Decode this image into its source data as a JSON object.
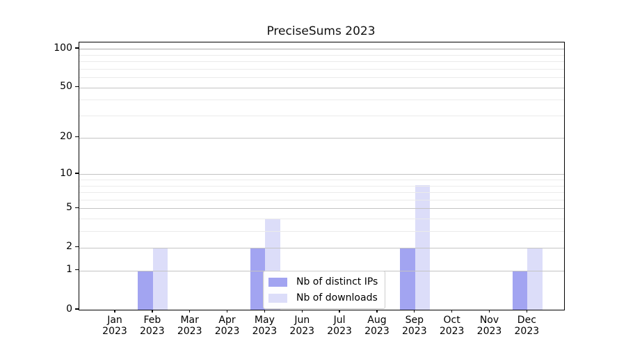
{
  "title": "PreciseSums 2023",
  "legend": {
    "items": [
      {
        "label": "Nb of distinct IPs",
        "color": "#a2a4f1"
      },
      {
        "label": "Nb of downloads",
        "color": "#dcddf9"
      }
    ]
  },
  "chart_data": {
    "type": "bar",
    "title": "PreciseSums 2023",
    "categories": [
      "Jan 2023",
      "Feb 2023",
      "Mar 2023",
      "Apr 2023",
      "May 2023",
      "Jun 2023",
      "Jul 2023",
      "Aug 2023",
      "Sep 2023",
      "Oct 2023",
      "Nov 2023",
      "Dec 2023"
    ],
    "x_months": [
      "Jan",
      "Feb",
      "Mar",
      "Apr",
      "May",
      "Jun",
      "Jul",
      "Aug",
      "Sep",
      "Oct",
      "Nov",
      "Dec"
    ],
    "x_year": "2023",
    "series": [
      {
        "name": "Nb of distinct IPs",
        "color": "#a2a4f1",
        "values": [
          0,
          1,
          0,
          0,
          2,
          0,
          0,
          0,
          2,
          0,
          0,
          1
        ]
      },
      {
        "name": "Nb of downloads",
        "color": "#dcddf9",
        "values": [
          0,
          2,
          0,
          0,
          4,
          0,
          0,
          0,
          8,
          0,
          0,
          2
        ]
      }
    ],
    "xlabel": "",
    "ylabel": "",
    "y_scale": "log1p",
    "y_ticks": [
      0,
      1,
      2,
      5,
      10,
      20,
      50,
      100
    ],
    "y_minor_gridlines": [
      3,
      4,
      6,
      7,
      8,
      9,
      30,
      40,
      60,
      70,
      80,
      90
    ],
    "ylim": [
      0,
      111
    ],
    "grid": "horizontal",
    "legend_position": "inside lower-center"
  }
}
